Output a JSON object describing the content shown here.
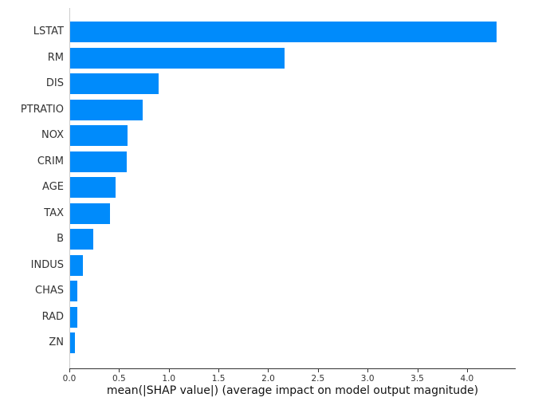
{
  "chart_data": {
    "type": "bar",
    "orientation": "horizontal",
    "title": "",
    "xlabel": "mean(|SHAP value|) (average impact on model output magnitude)",
    "ylabel": "",
    "categories": [
      "LSTAT",
      "RM",
      "DIS",
      "PTRATIO",
      "NOX",
      "CRIM",
      "AGE",
      "TAX",
      "B",
      "INDUS",
      "CHAS",
      "RAD",
      "ZN"
    ],
    "values": [
      4.29,
      2.16,
      0.89,
      0.73,
      0.58,
      0.57,
      0.46,
      0.4,
      0.23,
      0.13,
      0.07,
      0.07,
      0.05
    ],
    "xlim": [
      0.0,
      4.49
    ],
    "x_ticks": [
      0.0,
      0.5,
      1.0,
      1.5,
      2.0,
      2.5,
      3.0,
      3.5,
      4.0
    ],
    "x_tick_labels": [
      "0.0",
      "0.5",
      "1.0",
      "1.5",
      "2.0",
      "2.5",
      "3.0",
      "3.5",
      "4.0"
    ],
    "grid": false,
    "legend": null,
    "colors": {
      "bar": "#008bfb",
      "left_spine": "#cccccc",
      "bottom_spine": "#333333",
      "tick_label": "#333333",
      "axis_label": "#111111"
    }
  }
}
